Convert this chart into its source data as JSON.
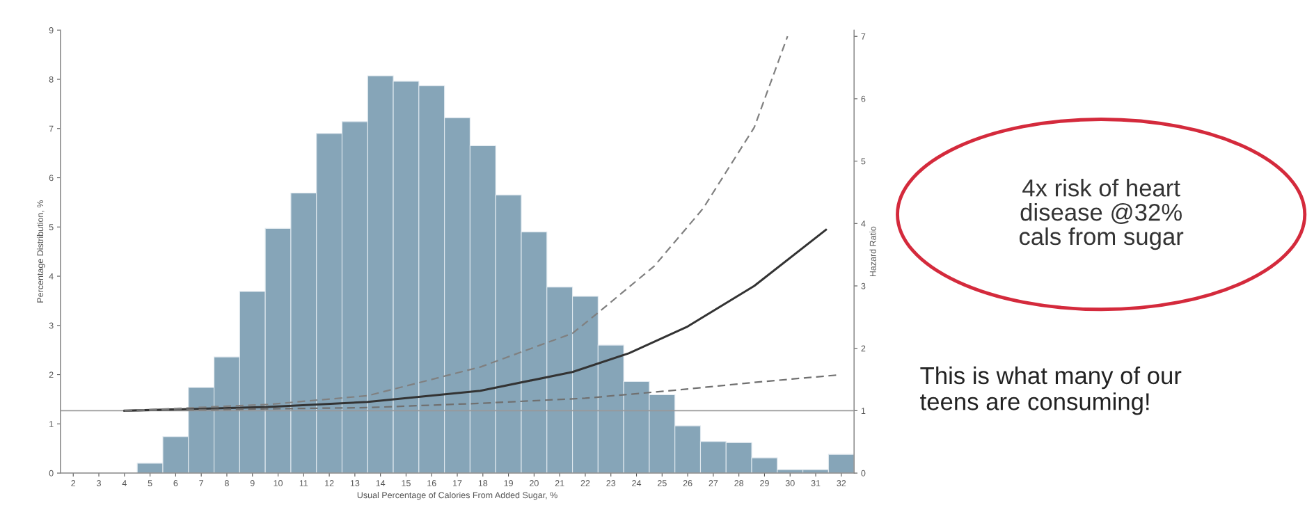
{
  "chart_data": {
    "type": "histogram",
    "xlabel": "Usual Percentage of Calories From Added Sugar, %",
    "ylabel": "Percentage Distribution, %",
    "y2label": "Hazard Ratio",
    "bins": [
      1.5,
      2.5,
      3.5,
      4.5,
      5.5,
      6.5,
      7.5,
      8.5,
      9.5,
      10.5,
      11.5,
      12.5,
      13.5,
      14.5,
      15.5,
      16.5,
      17.5,
      18.5,
      19.5,
      20.5,
      21.5,
      22.5,
      23.5,
      24.5,
      25.5,
      26.5,
      27.5,
      28.5,
      29.5,
      30.5,
      31.5,
      32.5
    ],
    "values": [
      0,
      0,
      0,
      0.2,
      0.74,
      1.74,
      2.36,
      3.69,
      4.97,
      5.69,
      6.9,
      7.14,
      8.07,
      7.96,
      7.87,
      7.22,
      6.65,
      5.65,
      4.9,
      3.78,
      3.59,
      2.6,
      1.86,
      1.59,
      0.96,
      0.64,
      0.62,
      0.31,
      0.07,
      0.07,
      0.38
    ],
    "color": "#86a5b8",
    "xlim": [
      1.5,
      32.5
    ],
    "xticks": [
      2,
      3,
      4,
      5,
      6,
      7,
      8,
      9,
      10,
      11,
      12,
      13,
      14,
      15,
      16,
      17,
      18,
      19,
      20,
      21,
      22,
      23,
      24,
      25,
      26,
      27,
      28,
      29,
      30,
      31,
      32
    ],
    "ylim": [
      0,
      9
    ],
    "yticks": [
      0,
      1,
      2,
      3,
      4,
      5,
      6,
      7,
      8,
      9
    ],
    "y2lim": [
      0,
      7.1
    ],
    "y2ticks": [
      0,
      1,
      2,
      3,
      4,
      5,
      6,
      7
    ],
    "grid": false,
    "legend": false,
    "series": [
      {
        "type": "line",
        "axis": "y2",
        "color": "#333333",
        "line_style": "solid",
        "x": [
          4,
          9.6,
          13.5,
          17.9,
          21.5,
          23.7,
          26.0,
          28.6,
          31.4
        ],
        "values": [
          1.0,
          1.06,
          1.14,
          1.32,
          1.62,
          1.92,
          2.35,
          3.0,
          3.9
        ]
      },
      {
        "type": "line",
        "axis": "y2",
        "color": "#808080",
        "line_style": "dashed",
        "x": [
          4,
          9.6,
          13.5,
          17.9,
          21.5,
          22.5,
          24.7,
          26.6,
          28.6,
          29.9
        ],
        "values": [
          1.0,
          1.1,
          1.24,
          1.7,
          2.24,
          2.57,
          3.32,
          4.24,
          5.54,
          7.0
        ]
      },
      {
        "type": "line",
        "axis": "y2",
        "color": "#707070",
        "line_style": "dashed",
        "x": [
          4,
          13.5,
          18,
          22,
          25.3,
          28.5,
          31.8
        ],
        "values": [
          1.0,
          1.05,
          1.12,
          1.2,
          1.32,
          1.45,
          1.57
        ]
      }
    ],
    "ref_lines": [
      {
        "axis": "y2",
        "value": 1,
        "color": "#999999",
        "line_style": "solid"
      }
    ],
    "annotations": [
      "4x risk of heart\ndisease @32%\ncals from sugar",
      "This is what many of our\nteens are consuming!"
    ]
  }
}
